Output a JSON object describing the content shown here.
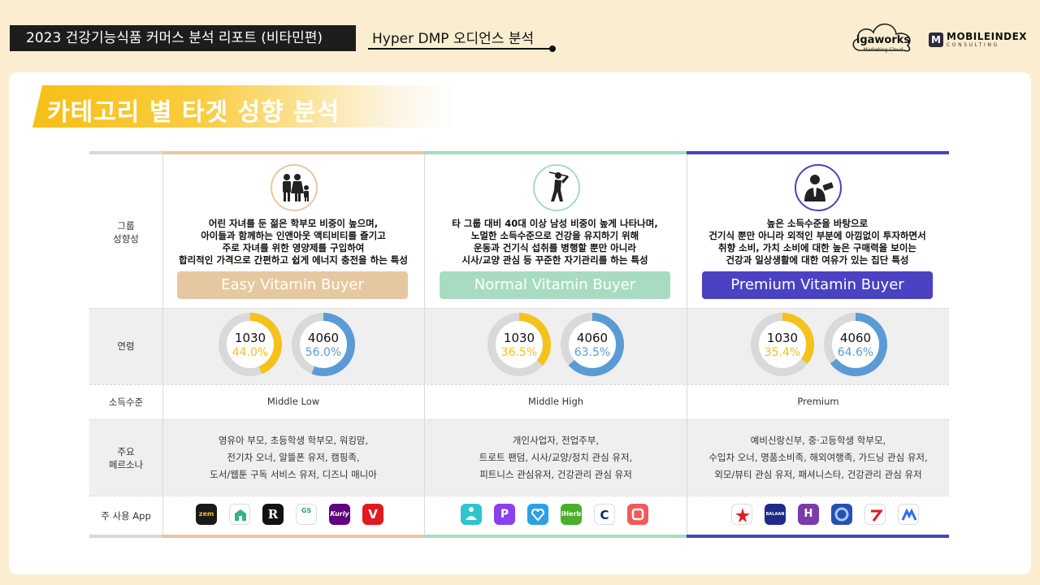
{
  "header": {
    "report_title": "2023 건강기능식품 커머스 분석 리포트 (비타민편)",
    "sub_title": "Hyper DMP 오디언스 분석",
    "logo_igaworks": "igaworks",
    "logo_igaworks_sub": "Marketing Cloud",
    "logo_mobileindex": "MOBILEINDEX",
    "logo_mobileindex_sub": "CONSULTING",
    "logo_mobileindex_mark": "M"
  },
  "section_title": "카테고리 별 타겟 성향 분석",
  "row_labels": {
    "group": "그룹\n성향성",
    "age": "연령",
    "income": "소득수준",
    "persona": "주요\n페르소나",
    "apps": "주 사용 App"
  },
  "groups": [
    {
      "icon": "family-icon",
      "accent": "#e6c8a0",
      "bar_color": "#e6c8a0",
      "description": "어린 자녀를 둔 젊은 학부모 비중이 높으며,\n아이들과 함께하는 인앤아웃 액티비티를 즐기고\n주로 자녀를 위한 영양제를 구입하여\n합리적인 가격으로 간편하고 쉽게 에너지 충전을 하는 특성",
      "label": "Easy Vitamin Buyer",
      "label_bg": "#e6c8a0",
      "age": [
        {
          "name": "1030",
          "pct": "44.0%",
          "value": 44.0,
          "color": "#f5c21b"
        },
        {
          "name": "4060",
          "pct": "56.0%",
          "value": 56.0,
          "color": "#5b9bd5"
        }
      ],
      "income": "Middle Low",
      "persona": "영유아 부모, 초등학생 학부모, 워킹맘,\n전기차 오너, 알뜰폰 유저, 캠핑족,\n도서/웹툰 구독 서비스 유저, 디즈니 매니아",
      "apps": [
        {
          "name": "zem",
          "color": "#1a1a1a"
        },
        {
          "name": "kidsnote",
          "color": "#38b08c"
        },
        {
          "name": "ridi",
          "color": "#111111"
        },
        {
          "name": "gs-fresh-mall",
          "color": "#3aa45a"
        },
        {
          "name": "kurly",
          "color": "#5f0080"
        },
        {
          "name": "v-app",
          "color": "#e3191f"
        }
      ]
    },
    {
      "icon": "golf-icon",
      "accent": "#a8dcc0",
      "bar_color": "#a8dcc0",
      "description": "타 그룹 대비 40대 이상 남성 비중이 높게 나타나며,\n노멀한 소득수준으로 건강을 유지하기 위해\n운동과 건기식 섭취를 병행할 뿐만 아니라\n시사/교양 관심 등 꾸준한 자기관리를 하는 특성",
      "label": "Normal Vitamin Buyer",
      "label_bg": "#a8dcc0",
      "age": [
        {
          "name": "1030",
          "pct": "36.5%",
          "value": 36.5,
          "color": "#f5c21b"
        },
        {
          "name": "4060",
          "pct": "63.5%",
          "value": 63.5,
          "color": "#5b9bd5"
        }
      ],
      "income": "Middle High",
      "persona": "개인사업자, 전업주부,\n트로트 팬덤, 시사/교양/정치 관심 유저,\n피트니스 관심유저, 건강관리 관심 유저",
      "apps": [
        {
          "name": "meditation-app",
          "color": "#2ec5cf"
        },
        {
          "name": "p-app",
          "color": "#8a3ff0"
        },
        {
          "name": "v-heart-app",
          "color": "#2e9ee6"
        },
        {
          "name": "iherb",
          "color": "#4caf2c"
        },
        {
          "name": "c-app",
          "color": "#ffffff"
        },
        {
          "name": "q-app",
          "color": "#f05a5a"
        }
      ]
    },
    {
      "icon": "businessman-icon",
      "accent": "#4a42c2",
      "bar_color": "#4a42c2",
      "description": "높은 소득수준을 바탕으로\n건기식 뿐만 아니라 외적인 부분에 아낌없이 투자하면서\n취향 소비, 가치 소비에 대한 높은 구매력을 보이는\n건강과 일상생활에 대한 여유가 있는 집단 특성",
      "label": "Premium Vitamin Buyer",
      "label_bg": "#4a42c2",
      "age": [
        {
          "name": "1030",
          "pct": "35.4%",
          "value": 35.4,
          "color": "#f5c21b"
        },
        {
          "name": "4060",
          "pct": "64.6%",
          "value": 64.6,
          "color": "#5b9bd5"
        }
      ],
      "income": "Premium",
      "persona": "예비신랑신부, 중·고등학생 학부모,\n수입차 오너, 명품소비족, 해외여행족, 가드닝 관심 유저,\n외모/뷰티 관심 유저, 패셔니스타, 건강관리 관심 유저",
      "apps": [
        {
          "name": "star-app",
          "color": "#ffffff"
        },
        {
          "name": "balaan",
          "color": "#1f2a8a"
        },
        {
          "name": "h-app",
          "color": "#7a3ca8"
        },
        {
          "name": "swirl-app",
          "color": "#2a4fb0"
        },
        {
          "name": "z-app",
          "color": "#ffffff"
        },
        {
          "name": "m-app",
          "color": "#ffffff"
        }
      ]
    }
  ],
  "app_labels": {
    "zem": "zem",
    "gs": "GS",
    "ridi": "R",
    "kurly": "Kurly",
    "v": "V",
    "p": "P",
    "iherb": "iHerb",
    "c": "C",
    "balaan": "BALAAN",
    "h": "H"
  }
}
